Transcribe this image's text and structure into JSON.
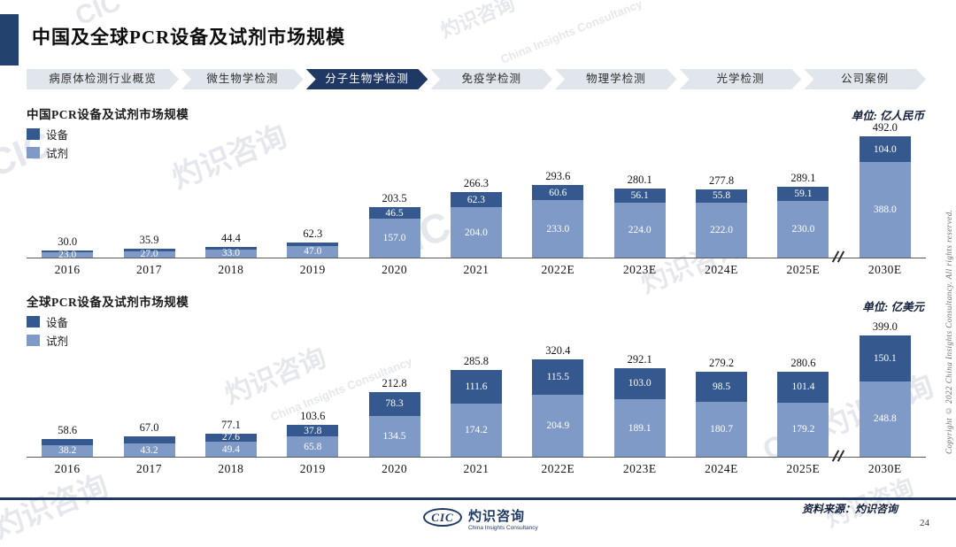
{
  "slide": {
    "title": "中国及全球PCR设备及试剂市场规模",
    "page_number": "24",
    "source_label": "资料来源：灼识咨询",
    "copyright_vertical": "Copyright © 2022 China Insights Consultancy. All rights reserved.",
    "watermark_text": "灼识咨询",
    "watermark_cic": "CIC",
    "watermark_subtitle": "China Insights Consultancy",
    "footer_logo": {
      "cic": "CIC",
      "name": "灼识咨询",
      "subtitle": "China Insights Consultancy"
    }
  },
  "tabs": [
    {
      "label": "病原体检测行业概览",
      "active": false
    },
    {
      "label": "微生物学检测",
      "active": false
    },
    {
      "label": "分子生物学检测",
      "active": true
    },
    {
      "label": "免疫学检测",
      "active": false
    },
    {
      "label": "物理学检测",
      "active": false
    },
    {
      "label": "光学检测",
      "active": false
    },
    {
      "label": "公司案例",
      "active": false
    }
  ],
  "colors": {
    "equipment": "#35598E",
    "reagent": "#7F9AC6",
    "tab_active": "#1F3864",
    "accent_block": "#24426E",
    "footer_line": "#1F3864"
  },
  "chart_data": [
    {
      "type": "bar",
      "stacked": true,
      "title": "中国PCR设备及试剂市场规模",
      "unit": "单位: 亿人民币",
      "legend": [
        "设备",
        "试剂"
      ],
      "legend_position": "top-left",
      "grid": false,
      "axis_break_between": [
        "2025E",
        "2030E"
      ],
      "categories": [
        "2016",
        "2017",
        "2018",
        "2019",
        "2020",
        "2021",
        "2022E",
        "2023E",
        "2024E",
        "2025E",
        "2030E"
      ],
      "series": [
        {
          "name": "设备",
          "values": [
            7.0,
            8.9,
            11.4,
            15.3,
            46.5,
            62.3,
            60.6,
            56.1,
            55.8,
            59.1,
            104.0
          ],
          "label_visible": [
            false,
            false,
            false,
            false,
            true,
            true,
            true,
            true,
            true,
            true,
            true
          ]
        },
        {
          "name": "试剂",
          "values": [
            23.0,
            27.0,
            33.0,
            47.0,
            157.0,
            204.0,
            233.0,
            224.0,
            222.0,
            230.0,
            388.0
          ],
          "label_visible": [
            true,
            true,
            true,
            true,
            true,
            true,
            true,
            true,
            true,
            true,
            true
          ]
        }
      ],
      "totals": [
        30.0,
        35.9,
        44.4,
        62.3,
        203.5,
        266.3,
        293.6,
        280.1,
        277.8,
        289.1,
        492.0
      ],
      "ylim": [
        0,
        492
      ]
    },
    {
      "type": "bar",
      "stacked": true,
      "title": "全球PCR设备及试剂市场规模",
      "unit": "单位: 亿美元",
      "legend": [
        "设备",
        "试剂"
      ],
      "legend_position": "top-left",
      "grid": false,
      "axis_break_between": [
        "2025E",
        "2030E"
      ],
      "categories": [
        "2016",
        "2017",
        "2018",
        "2019",
        "2020",
        "2021",
        "2022E",
        "2023E",
        "2024E",
        "2025E",
        "2030E"
      ],
      "series": [
        {
          "name": "设备",
          "values": [
            20.4,
            23.8,
            27.6,
            37.8,
            78.3,
            111.6,
            115.5,
            103.0,
            98.5,
            101.4,
            150.1
          ],
          "label_visible": [
            false,
            false,
            true,
            true,
            true,
            true,
            true,
            true,
            true,
            true,
            true
          ]
        },
        {
          "name": "试剂",
          "values": [
            38.2,
            43.2,
            49.4,
            65.8,
            134.5,
            174.2,
            204.9,
            189.1,
            180.7,
            179.2,
            248.8
          ],
          "label_visible": [
            true,
            true,
            true,
            true,
            true,
            true,
            true,
            true,
            true,
            true,
            true
          ]
        }
      ],
      "totals": [
        58.6,
        67.0,
        77.1,
        103.6,
        212.8,
        285.8,
        320.4,
        292.1,
        279.2,
        280.6,
        399.0
      ],
      "ylim": [
        0,
        492
      ]
    }
  ]
}
